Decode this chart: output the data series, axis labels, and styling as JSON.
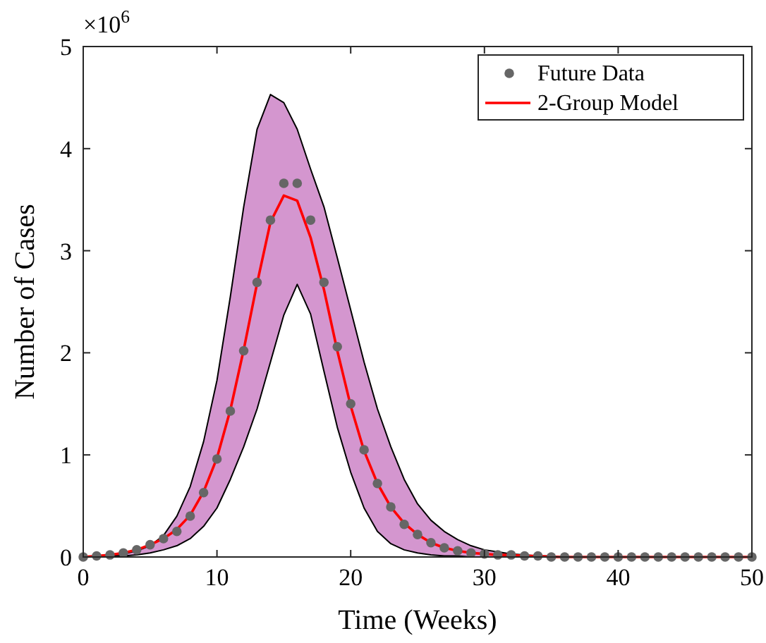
{
  "chart_data": {
    "type": "line",
    "xlabel": "Time (Weeks)",
    "ylabel": "Number of Cases",
    "annotations": [
      "×10$^{6}$"
    ],
    "x": [
      0,
      1,
      2,
      3,
      4,
      5,
      6,
      7,
      8,
      9,
      10,
      11,
      12,
      13,
      14,
      15,
      16,
      17,
      18,
      19,
      20,
      21,
      22,
      23,
      24,
      25,
      26,
      27,
      28,
      29,
      30,
      31,
      32,
      33,
      34,
      35,
      36,
      37,
      38,
      39,
      40,
      41,
      42,
      43,
      44,
      45,
      46,
      47,
      48,
      49,
      50
    ],
    "series": [
      {
        "name": "Future Data",
        "type": "scatter",
        "color": "#666666",
        "marker": "circle",
        "values": [
          0,
          0.01,
          0.02,
          0.04,
          0.07,
          0.12,
          0.18,
          0.25,
          0.4,
          0.63,
          0.96,
          1.43,
          2.02,
          2.69,
          3.3,
          3.66,
          3.66,
          3.3,
          2.69,
          2.06,
          1.5,
          1.05,
          0.72,
          0.49,
          0.32,
          0.22,
          0.14,
          0.09,
          0.06,
          0.04,
          0.03,
          0.02,
          0.02,
          0.01,
          0.01,
          0,
          0,
          0,
          0,
          0,
          0,
          0,
          0,
          0,
          0,
          0,
          0,
          0,
          0,
          0,
          0
        ]
      },
      {
        "name": "2-Group Model",
        "type": "line",
        "color": "#ff0000",
        "marker": "none",
        "line_style": "solid",
        "values": [
          0,
          0.01,
          0.02,
          0.04,
          0.07,
          0.12,
          0.18,
          0.27,
          0.41,
          0.64,
          0.97,
          1.44,
          2.03,
          2.68,
          3.28,
          3.54,
          3.49,
          3.13,
          2.62,
          2.02,
          1.48,
          1.04,
          0.72,
          0.49,
          0.33,
          0.22,
          0.14,
          0.09,
          0.06,
          0.04,
          0.03,
          0.02,
          0.02,
          0.01,
          0.01,
          0,
          0,
          0,
          0,
          0,
          0,
          0,
          0,
          0,
          0,
          0,
          0,
          0,
          0,
          0,
          0
        ],
        "lower": [
          0,
          0,
          0.01,
          0.01,
          0.02,
          0.04,
          0.07,
          0.11,
          0.18,
          0.3,
          0.48,
          0.76,
          1.08,
          1.45,
          1.91,
          2.37,
          2.67,
          2.38,
          1.82,
          1.27,
          0.83,
          0.48,
          0.25,
          0.13,
          0.07,
          0.04,
          0.02,
          0.01,
          0.01,
          0,
          0,
          0,
          0,
          0,
          0,
          0,
          0,
          0,
          0,
          0,
          0,
          0,
          0,
          0,
          0,
          0,
          0,
          0,
          0,
          0,
          0
        ],
        "upper": [
          0,
          0.01,
          0.02,
          0.03,
          0.06,
          0.11,
          0.21,
          0.4,
          0.69,
          1.13,
          1.73,
          2.55,
          3.43,
          4.19,
          4.53,
          4.45,
          4.19,
          3.8,
          3.43,
          2.93,
          2.42,
          1.91,
          1.45,
          1.08,
          0.76,
          0.52,
          0.36,
          0.25,
          0.17,
          0.11,
          0.07,
          0.05,
          0.03,
          0.02,
          0.01,
          0.01,
          0,
          0,
          0,
          0,
          0,
          0,
          0,
          0,
          0,
          0,
          0,
          0,
          0,
          0,
          0
        ]
      }
    ],
    "xlim": [
      0,
      50
    ],
    "xticks": [
      0,
      10,
      20,
      30,
      40,
      50
    ],
    "ylim": [
      0,
      5
    ],
    "yticks": [
      0,
      1,
      2,
      3,
      4,
      5
    ],
    "grid": false,
    "legend": "top right"
  }
}
